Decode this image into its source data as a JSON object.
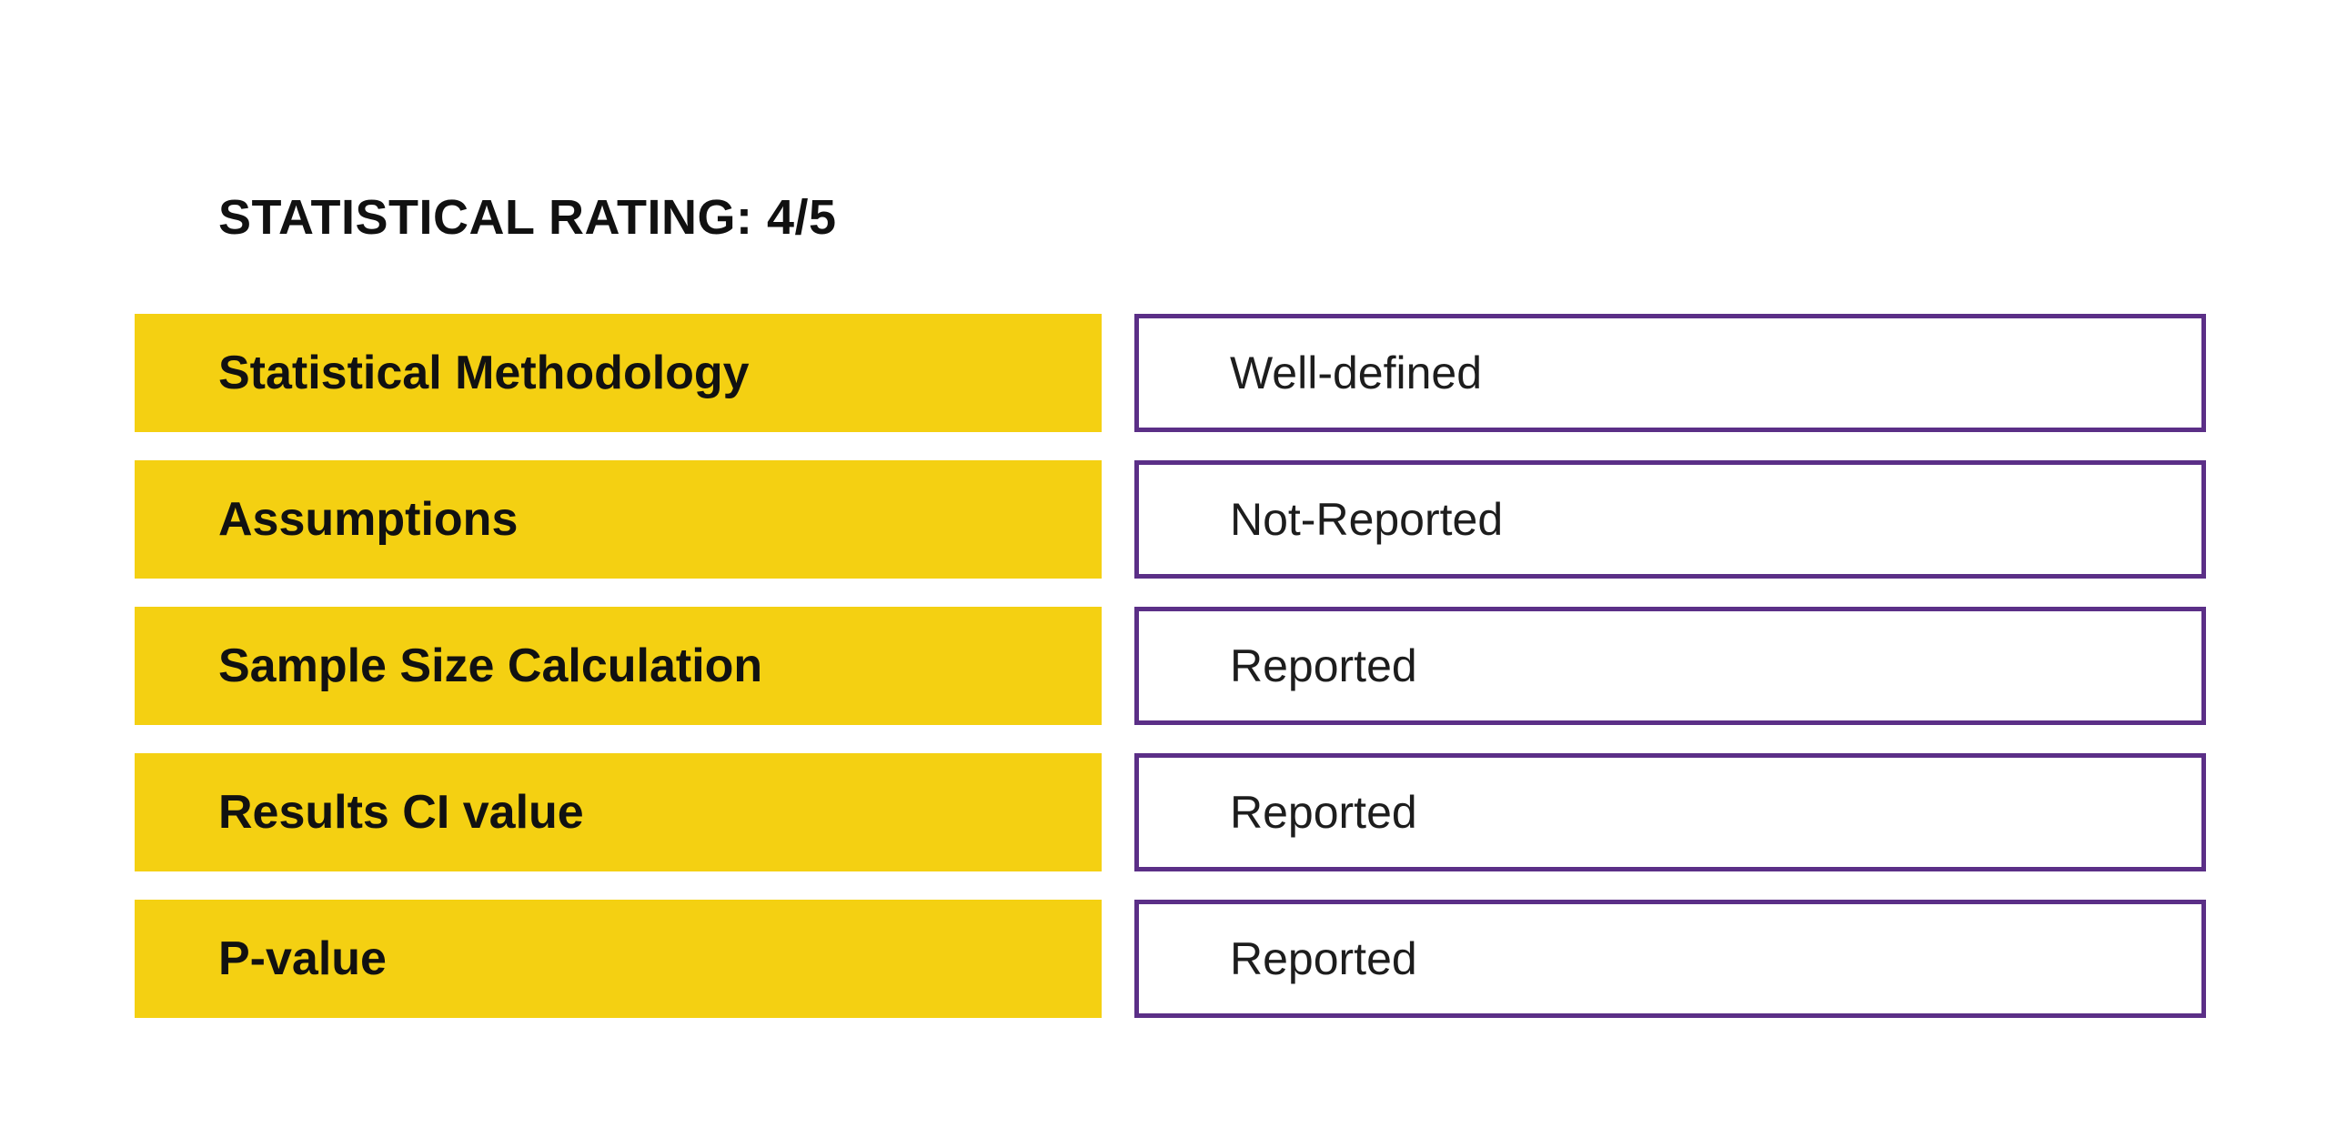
{
  "title": "STATISTICAL RATING: 4/5",
  "colors": {
    "page_bg": "#ffffff",
    "label_bg": "#F4D012",
    "value_border": "#5B2F87",
    "text": "#111111",
    "value_text": "#1d1d1d"
  },
  "rows": [
    {
      "label": "Statistical Methodology",
      "value": "Well-defined"
    },
    {
      "label": "Assumptions",
      "value": "Not-Reported"
    },
    {
      "label": "Sample Size Calculation",
      "value": "Reported"
    },
    {
      "label": "Results CI value",
      "value": "Reported"
    },
    {
      "label": "P-value",
      "value": "Reported"
    }
  ]
}
